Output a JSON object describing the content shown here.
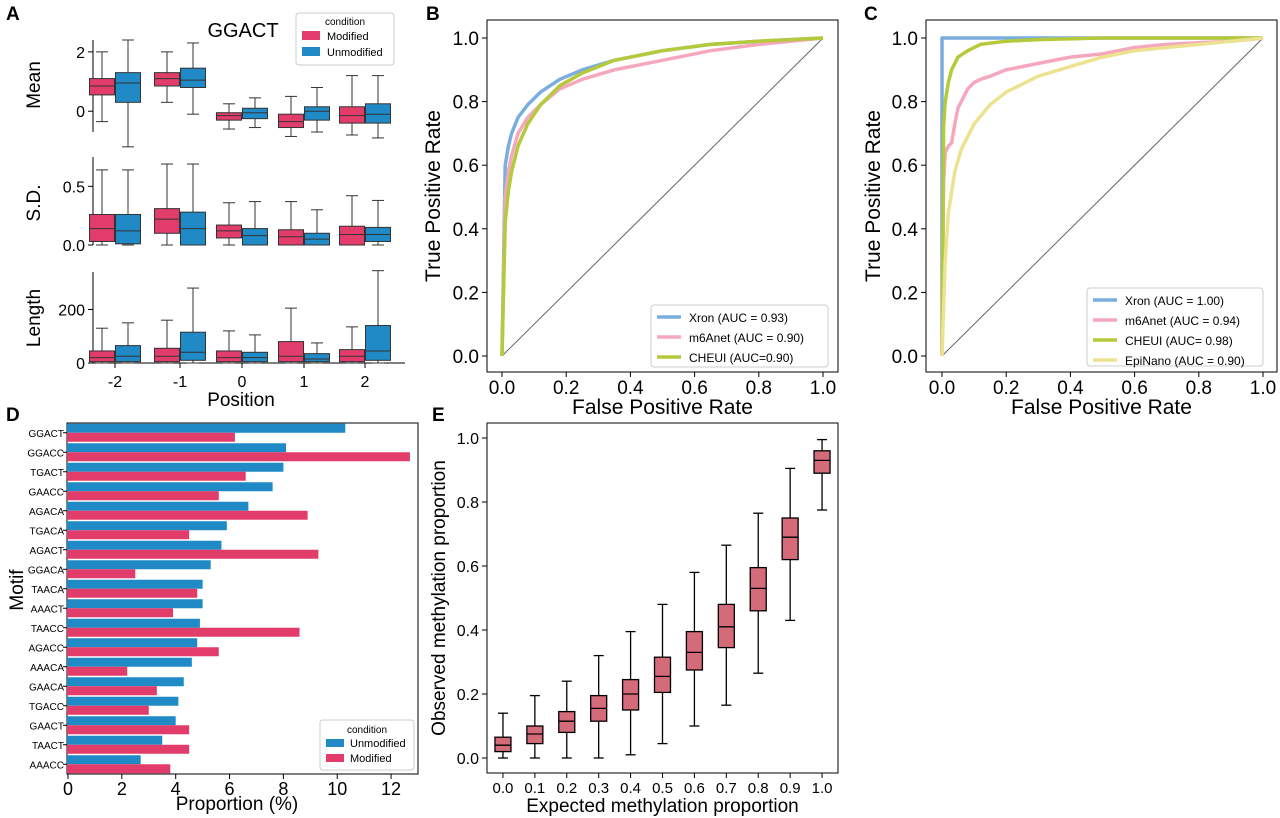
{
  "colors": {
    "modified": "#e23d6a",
    "unmodified": "#1f8ac6",
    "xron": "#79aede",
    "m6anet": "#f5a8bd",
    "cheui": "#b5c93a",
    "epinano": "#ece290",
    "boxE": "#d46b78"
  },
  "chart_data": [
    {
      "panel": "A",
      "type": "box",
      "title": "GGACT",
      "xlabel": "Position",
      "categories": [
        "-2",
        "-1",
        "0",
        "1",
        "2"
      ],
      "legend": {
        "title": "condition",
        "items": [
          "Modified",
          "Unmodified"
        ],
        "placement": "top-right"
      },
      "subplots": [
        {
          "ylabel": "Mean",
          "ylim": [
            -0.7,
            2.4
          ],
          "yticks": [
            "2",
            "0"
          ],
          "ytick_values": [
            2,
            0
          ],
          "Modified": [
            {
              "whislo": -0.35,
              "q1": 0.55,
              "med": 0.85,
              "q3": 1.1,
              "whishi": 2.0
            },
            {
              "whislo": 0.3,
              "q1": 0.85,
              "med": 1.1,
              "q3": 1.3,
              "whishi": 2.0
            },
            {
              "whislo": -0.6,
              "q1": -0.3,
              "med": -0.15,
              "q3": -0.05,
              "whishi": 0.25
            },
            {
              "whislo": -0.85,
              "q1": -0.55,
              "med": -0.35,
              "q3": -0.1,
              "whishi": 0.5
            },
            {
              "whislo": -0.8,
              "q1": -0.4,
              "med": -0.15,
              "q3": 0.15,
              "whishi": 1.2
            }
          ],
          "Unmodified": [
            {
              "whislo": -1.2,
              "q1": 0.3,
              "med": 0.95,
              "q3": 1.3,
              "whishi": 2.4
            },
            {
              "whislo": -0.1,
              "q1": 0.8,
              "med": 1.05,
              "q3": 1.45,
              "whishi": 2.3
            },
            {
              "whislo": -0.55,
              "q1": -0.25,
              "med": -0.05,
              "q3": 0.1,
              "whishi": 0.45
            },
            {
              "whislo": -0.7,
              "q1": -0.3,
              "med": 0.0,
              "q3": 0.15,
              "whishi": 0.8
            },
            {
              "whislo": -0.9,
              "q1": -0.4,
              "med": -0.1,
              "q3": 0.25,
              "whishi": 1.2
            }
          ]
        },
        {
          "ylabel": "S.D.",
          "ylim": [
            0,
            0.75
          ],
          "yticks": [
            "0.5",
            "0.0"
          ],
          "ytick_values": [
            0.5,
            0
          ],
          "Modified": [
            {
              "whislo": 0.0,
              "q1": 0.03,
              "med": 0.14,
              "q3": 0.26,
              "whishi": 0.64
            },
            {
              "whislo": 0.0,
              "q1": 0.1,
              "med": 0.22,
              "q3": 0.31,
              "whishi": 0.69
            },
            {
              "whislo": 0.0,
              "q1": 0.06,
              "med": 0.12,
              "q3": 0.17,
              "whishi": 0.36
            },
            {
              "whislo": 0.0,
              "q1": 0.0,
              "med": 0.07,
              "q3": 0.13,
              "whishi": 0.37
            },
            {
              "whislo": 0.0,
              "q1": 0.0,
              "med": 0.09,
              "q3": 0.16,
              "whishi": 0.42
            }
          ],
          "Unmodified": [
            {
              "whislo": 0.0,
              "q1": 0.01,
              "med": 0.12,
              "q3": 0.26,
              "whishi": 0.64
            },
            {
              "whislo": 0.0,
              "q1": 0.0,
              "med": 0.14,
              "q3": 0.28,
              "whishi": 0.69
            },
            {
              "whislo": 0.0,
              "q1": 0.0,
              "med": 0.08,
              "q3": 0.14,
              "whishi": 0.37
            },
            {
              "whislo": 0.0,
              "q1": 0.0,
              "med": 0.05,
              "q3": 0.1,
              "whishi": 0.3
            },
            {
              "whislo": 0.0,
              "q1": 0.03,
              "med": 0.09,
              "q3": 0.15,
              "whishi": 0.38
            }
          ]
        },
        {
          "ylabel": "Length",
          "ylim": [
            0,
            340
          ],
          "yticks": [
            "200",
            "0"
          ],
          "ytick_values": [
            200,
            0
          ],
          "Modified": [
            {
              "whislo": 0,
              "q1": 5,
              "med": 20,
              "q3": 45,
              "whishi": 130
            },
            {
              "whislo": 0,
              "q1": 5,
              "med": 25,
              "q3": 55,
              "whishi": 160
            },
            {
              "whislo": 0,
              "q1": 5,
              "med": 20,
              "q3": 45,
              "whishi": 120
            },
            {
              "whislo": 0,
              "q1": 5,
              "med": 25,
              "q3": 80,
              "whishi": 205
            },
            {
              "whislo": 0,
              "q1": 5,
              "med": 25,
              "q3": 50,
              "whishi": 135
            }
          ],
          "Unmodified": [
            {
              "whislo": 0,
              "q1": 5,
              "med": 25,
              "q3": 65,
              "whishi": 150
            },
            {
              "whislo": 0,
              "q1": 10,
              "med": 40,
              "q3": 115,
              "whishi": 280
            },
            {
              "whislo": 0,
              "q1": 5,
              "med": 20,
              "q3": 40,
              "whishi": 105
            },
            {
              "whislo": 0,
              "q1": 5,
              "med": 15,
              "q3": 35,
              "whishi": 75
            },
            {
              "whislo": 0,
              "q1": 10,
              "med": 45,
              "q3": 140,
              "whishi": 345
            }
          ]
        }
      ]
    },
    {
      "panel": "B",
      "type": "line",
      "xlabel": "False Positive Rate",
      "ylabel": "True Positive Rate",
      "xlim": [
        0,
        1
      ],
      "ylim": [
        0,
        1
      ],
      "xticks": [
        "0.0",
        "0.2",
        "0.4",
        "0.6",
        "0.8",
        "1.0"
      ],
      "yticks": [
        "0.0",
        "0.2",
        "0.4",
        "0.6",
        "0.8",
        "1.0"
      ],
      "legend_placement": "bottom-right",
      "series": [
        {
          "name": "Xron (AUC = 0.93)",
          "color_key": "xron",
          "x": [
            0,
            0.01,
            0.02,
            0.03,
            0.05,
            0.08,
            0.12,
            0.18,
            0.25,
            0.35,
            0.5,
            0.65,
            0.8,
            1.0
          ],
          "y": [
            0,
            0.6,
            0.66,
            0.7,
            0.75,
            0.79,
            0.83,
            0.87,
            0.9,
            0.93,
            0.96,
            0.98,
            0.99,
            1.0
          ]
        },
        {
          "name": "m6Anet (AUC = 0.90)",
          "color_key": "m6anet",
          "x": [
            0,
            0.01,
            0.02,
            0.03,
            0.05,
            0.08,
            0.12,
            0.18,
            0.25,
            0.35,
            0.5,
            0.65,
            0.8,
            1.0
          ],
          "y": [
            0,
            0.5,
            0.58,
            0.63,
            0.7,
            0.75,
            0.79,
            0.84,
            0.87,
            0.9,
            0.93,
            0.96,
            0.98,
            1.0
          ]
        },
        {
          "name": "CHEUI (AUC=0.90)",
          "color_key": "cheui",
          "x": [
            0,
            0.01,
            0.02,
            0.03,
            0.05,
            0.08,
            0.12,
            0.18,
            0.25,
            0.35,
            0.5,
            0.65,
            0.8,
            1.0
          ],
          "y": [
            0,
            0.42,
            0.52,
            0.58,
            0.66,
            0.73,
            0.79,
            0.85,
            0.89,
            0.93,
            0.96,
            0.98,
            0.99,
            1.0
          ]
        }
      ]
    },
    {
      "panel": "C",
      "type": "line",
      "xlabel": "False Positive Rate",
      "ylabel": "True Positive Rate",
      "xlim": [
        0,
        1
      ],
      "ylim": [
        0,
        1
      ],
      "xticks": [
        "0.0",
        "0.2",
        "0.4",
        "0.6",
        "0.8",
        "1.0"
      ],
      "yticks": [
        "0.0",
        "0.2",
        "0.4",
        "0.6",
        "0.8",
        "1.0"
      ],
      "legend_placement": "bottom-right",
      "series": [
        {
          "name": "Xron (AUC = 1.00)",
          "color_key": "xron",
          "x": [
            0,
            0,
            1.0
          ],
          "y": [
            0,
            1.0,
            1.0
          ]
        },
        {
          "name": "m6Anet (AUC = 0.94)",
          "color_key": "m6anet",
          "x": [
            0,
            0.005,
            0.01,
            0.02,
            0.03,
            0.04,
            0.05,
            0.06,
            0.07,
            0.08,
            0.1,
            0.12,
            0.15,
            0.2,
            0.25,
            0.3,
            0.4,
            0.5,
            0.6,
            0.7,
            0.8,
            0.9,
            1.0
          ],
          "y": [
            0,
            0.55,
            0.64,
            0.66,
            0.67,
            0.73,
            0.78,
            0.8,
            0.82,
            0.84,
            0.86,
            0.87,
            0.88,
            0.9,
            0.91,
            0.92,
            0.94,
            0.95,
            0.97,
            0.98,
            0.985,
            0.99,
            1.0
          ]
        },
        {
          "name": "CHEUI (AUC= 0.98)",
          "color_key": "cheui",
          "x": [
            0,
            0.005,
            0.01,
            0.02,
            0.03,
            0.05,
            0.08,
            0.12,
            0.2,
            0.3,
            0.5,
            1.0
          ],
          "y": [
            0,
            0.72,
            0.8,
            0.86,
            0.9,
            0.94,
            0.96,
            0.98,
            0.99,
            0.995,
            1.0,
            1.0
          ]
        },
        {
          "name": "EpiNano (AUC = 0.90)",
          "color_key": "epinano",
          "x": [
            0,
            0.01,
            0.02,
            0.04,
            0.06,
            0.1,
            0.15,
            0.2,
            0.3,
            0.4,
            0.5,
            0.6,
            0.7,
            0.8,
            0.9,
            1.0
          ],
          "y": [
            0,
            0.3,
            0.45,
            0.58,
            0.65,
            0.73,
            0.79,
            0.83,
            0.88,
            0.91,
            0.94,
            0.96,
            0.97,
            0.98,
            0.99,
            1.0
          ]
        }
      ]
    },
    {
      "panel": "D",
      "type": "bar",
      "orientation": "horizontal",
      "ylabel": "Motif",
      "xlabel": "Proportion (%)",
      "xlim": [
        0,
        13
      ],
      "xticks": [
        "0",
        "2",
        "4",
        "6",
        "8",
        "10",
        "12"
      ],
      "legend": {
        "title": "condition",
        "items": [
          "Unmodified",
          "Modified"
        ],
        "placement": "bottom-right"
      },
      "categories": [
        "GGACT",
        "GGACC",
        "TGACT",
        "GAACC",
        "AGACA",
        "TGACA",
        "AGACT",
        "GGACA",
        "TAACA",
        "AAACT",
        "TAACC",
        "AGACC",
        "AAACA",
        "GAACA",
        "TGACC",
        "GAACT",
        "TAACT",
        "AAACC"
      ],
      "series": [
        {
          "name": "Unmodified",
          "values": [
            10.3,
            8.1,
            8.0,
            7.6,
            6.7,
            5.9,
            5.7,
            5.3,
            5.0,
            5.0,
            4.9,
            4.8,
            4.6,
            4.3,
            4.1,
            4.0,
            3.5,
            2.7
          ]
        },
        {
          "name": "Modified",
          "values": [
            6.2,
            12.7,
            6.6,
            5.6,
            8.9,
            4.5,
            9.3,
            2.5,
            4.8,
            3.9,
            8.6,
            5.6,
            2.2,
            3.3,
            3.0,
            4.5,
            4.5,
            3.8
          ]
        }
      ]
    },
    {
      "panel": "E",
      "type": "box",
      "xlabel": "Expected methylation proportion",
      "ylabel": "Observed methylation proportion",
      "ylim": [
        -0.03,
        1.04
      ],
      "xticks": [
        "0.0",
        "0.1",
        "0.2",
        "0.3",
        "0.4",
        "0.5",
        "0.6",
        "0.7",
        "0.8",
        "0.9",
        "1.0"
      ],
      "yticks": [
        "0.0",
        "0.2",
        "0.4",
        "0.6",
        "0.8",
        "1.0"
      ],
      "boxes": [
        {
          "whislo": 0.0,
          "q1": 0.02,
          "med": 0.04,
          "q3": 0.065,
          "whishi": 0.14
        },
        {
          "whislo": 0.0,
          "q1": 0.045,
          "med": 0.075,
          "q3": 0.1,
          "whishi": 0.195
        },
        {
          "whislo": 0.0,
          "q1": 0.08,
          "med": 0.115,
          "q3": 0.145,
          "whishi": 0.24
        },
        {
          "whislo": 0.0,
          "q1": 0.115,
          "med": 0.155,
          "q3": 0.195,
          "whishi": 0.32
        },
        {
          "whislo": 0.01,
          "q1": 0.15,
          "med": 0.2,
          "q3": 0.245,
          "whishi": 0.395
        },
        {
          "whislo": 0.045,
          "q1": 0.205,
          "med": 0.255,
          "q3": 0.315,
          "whishi": 0.48
        },
        {
          "whislo": 0.1,
          "q1": 0.275,
          "med": 0.33,
          "q3": 0.395,
          "whishi": 0.58
        },
        {
          "whislo": 0.165,
          "q1": 0.345,
          "med": 0.41,
          "q3": 0.48,
          "whishi": 0.665
        },
        {
          "whislo": 0.265,
          "q1": 0.46,
          "med": 0.53,
          "q3": 0.595,
          "whishi": 0.765
        },
        {
          "whislo": 0.43,
          "q1": 0.62,
          "med": 0.69,
          "q3": 0.75,
          "whishi": 0.905
        },
        {
          "whislo": 0.775,
          "q1": 0.89,
          "med": 0.93,
          "q3": 0.96,
          "whishi": 0.995
        }
      ]
    }
  ]
}
